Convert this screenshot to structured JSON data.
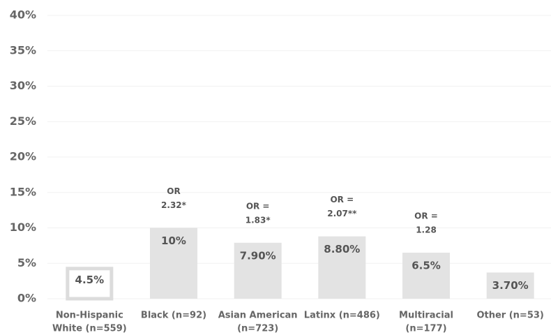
{
  "chart_data": {
    "type": "bar",
    "categories": [
      [
        "Non-Hispanic",
        "White (n=559)"
      ],
      [
        "Black (n=92)"
      ],
      [
        "Asian American",
        "(n=723)"
      ],
      [
        "Latinx (n=486)"
      ],
      [
        "Multiracial",
        "(n=177)"
      ],
      [
        "Other (n=53)"
      ]
    ],
    "values": [
      4.5,
      10,
      7.9,
      8.8,
      6.5,
      3.7
    ],
    "value_labels": [
      "4.5%",
      "10%",
      "7.90%",
      "8.80%",
      "6.5%",
      "3.70%"
    ],
    "annotations": [
      null,
      [
        "OR",
        "2.32*"
      ],
      [
        "OR =",
        "1.83*"
      ],
      [
        "OR =",
        "2.07**"
      ],
      [
        "OR =",
        "1.28"
      ],
      null
    ],
    "colors": [
      "#ffffff",
      "#e3e3e3",
      "#e3e3e3",
      "#e3e3e3",
      "#e3e3e3",
      "#e3e3e3"
    ],
    "ylim": [
      0,
      40
    ],
    "yticks": [
      {
        "value": 0,
        "label": "0%"
      },
      {
        "value": 5,
        "label": "5%"
      },
      {
        "value": 10,
        "label": "10%"
      },
      {
        "value": 15,
        "label": "15%"
      },
      {
        "value": 20,
        "label": "20%"
      },
      {
        "value": 25,
        "label": "25%"
      },
      {
        "value": 30,
        "label": "30%"
      },
      {
        "value": 35,
        "label": "35%"
      },
      {
        "value": 40,
        "label": "40%"
      }
    ],
    "grid": true
  }
}
